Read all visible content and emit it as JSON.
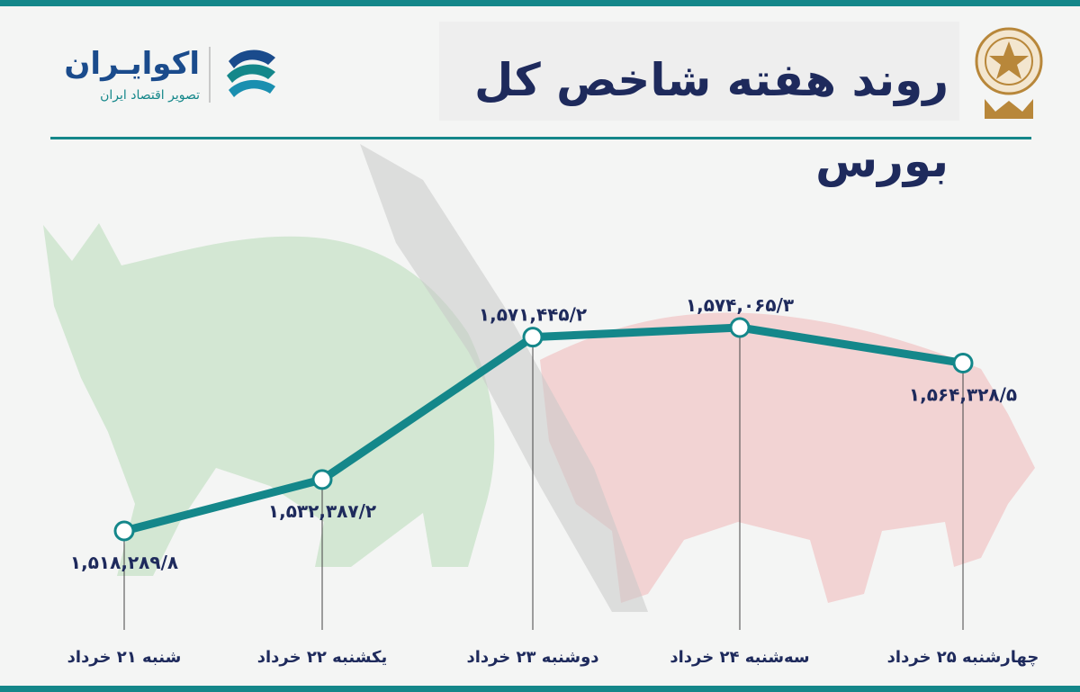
{
  "header": {
    "title": "روند هفته شاخص کل بورس"
  },
  "logo": {
    "name": "اکوایـران",
    "tagline": "تصویر اقتصاد ایران"
  },
  "colors": {
    "accent": "#14878a",
    "text": "#1e2a5c",
    "bull": "#cfe6cf",
    "bear": "#f2cfcf",
    "emblem": "#b8873a"
  },
  "icons": {
    "logo_mark": "ecoiran-logo-icon",
    "emblem": "tehran-stock-exchange-emblem-icon",
    "background": "bull-and-bear-icon"
  },
  "chart_data": {
    "type": "line",
    "title": "روند هفته شاخص کل بورس",
    "categories": [
      "شنبه ۲۱ خرداد",
      "یکشنبه ۲۲ خرداد",
      "دوشنبه ۲۳ خرداد",
      "سه‌شنبه ۲۴ خرداد",
      "چهارشنبه ۲۵ خرداد"
    ],
    "values": [
      1518289.8,
      1532387.2,
      1571445.2,
      1574065.3,
      1564328.5
    ],
    "value_labels": [
      "۱,۵۱۸,۲۸۹/۸",
      "۱,۵۳۲,۳۸۷/۲",
      "۱,۵۷۱,۴۴۵/۲",
      "۱,۵۷۴,۰۶۵/۳",
      "۱,۵۶۴,۳۲۸/۵"
    ],
    "xlabel": "",
    "ylabel": "",
    "grid": false,
    "legend": "none"
  }
}
